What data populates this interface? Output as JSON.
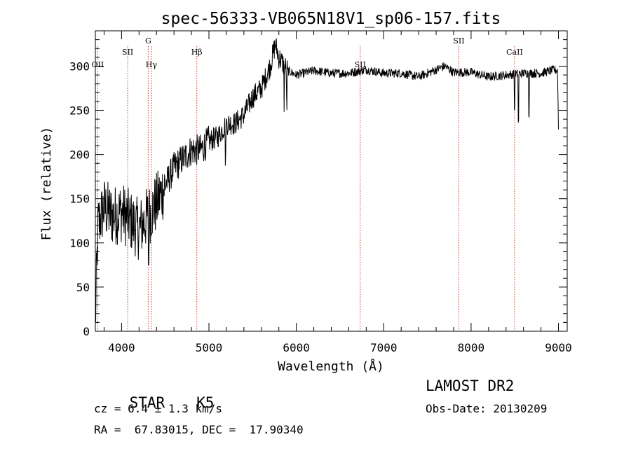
{
  "chart_data": {
    "type": "line",
    "title": "spec-56333-VB065N18V1_sp06-157.fits",
    "xlabel": "Wavelength (Å)",
    "ylabel": "Flux (relative)",
    "xlim": [
      3700,
      9100
    ],
    "ylim": [
      0,
      340
    ],
    "x_ticks": [
      4000,
      5000,
      6000,
      7000,
      8000,
      9000
    ],
    "y_ticks": [
      0,
      50,
      100,
      150,
      200,
      250,
      300
    ],
    "grid": false,
    "line_color": "#000000",
    "marker_color": "#c0392b",
    "spectrum": {
      "start_wavelength": 3700,
      "end_wavelength": 9000,
      "anchors": [
        [
          3700,
          10
        ],
        [
          3730,
          120
        ],
        [
          3800,
          140
        ],
        [
          3900,
          130
        ],
        [
          4000,
          135
        ],
        [
          4100,
          125
        ],
        [
          4200,
          115
        ],
        [
          4300,
          130
        ],
        [
          4400,
          145
        ],
        [
          4500,
          165
        ],
        [
          4600,
          185
        ],
        [
          4700,
          195
        ],
        [
          4800,
          205
        ],
        [
          4900,
          205
        ],
        [
          5000,
          215
        ],
        [
          5100,
          220
        ],
        [
          5200,
          235
        ],
        [
          5300,
          235
        ],
        [
          5400,
          245
        ],
        [
          5500,
          265
        ],
        [
          5600,
          275
        ],
        [
          5700,
          300
        ],
        [
          5760,
          325
        ],
        [
          5800,
          310
        ],
        [
          5900,
          295
        ],
        [
          6000,
          290
        ],
        [
          6200,
          295
        ],
        [
          6400,
          292
        ],
        [
          6600,
          292
        ],
        [
          6800,
          296
        ],
        [
          7000,
          292
        ],
        [
          7200,
          292
        ],
        [
          7400,
          288
        ],
        [
          7600,
          296
        ],
        [
          7700,
          300
        ],
        [
          7800,
          293
        ],
        [
          8000,
          293
        ],
        [
          8200,
          288
        ],
        [
          8400,
          290
        ],
        [
          8600,
          292
        ],
        [
          8800,
          292
        ],
        [
          8950,
          296
        ],
        [
          8990,
          295
        ],
        [
          9000,
          230
        ]
      ],
      "dips": [
        [
          4310,
          55
        ],
        [
          5190,
          45
        ],
        [
          5860,
          60
        ],
        [
          5890,
          40
        ],
        [
          8498,
          40
        ],
        [
          8542,
          55
        ],
        [
          8662,
          45
        ]
      ]
    },
    "lines": [
      {
        "label": "OII",
        "wavelength": 3727,
        "label_row": "lower"
      },
      {
        "label": "SII",
        "wavelength": 4070,
        "label_row": "upper"
      },
      {
        "label": "G",
        "wavelength": 4305,
        "label_row": "top"
      },
      {
        "label": "Hγ",
        "wavelength": 4341,
        "label_row": "lower"
      },
      {
        "label": "Hβ",
        "wavelength": 4861,
        "label_row": "upper"
      },
      {
        "label": "SII",
        "wavelength": 6731,
        "label_row": "lower"
      },
      {
        "label": "SII",
        "wavelength": 7860,
        "label_row": "top"
      },
      {
        "label": "CaII",
        "wavelength": 8498,
        "label_row": "upper"
      }
    ]
  },
  "info": {
    "class": "STAR",
    "subclass": "K5",
    "cz": "cz = 6.4 ± 1.3 km/s",
    "coords": "RA =  67.83015, DEC =  17.90340",
    "survey": "LAMOST DR2",
    "obs_date": "Obs-Date: 20130209"
  }
}
